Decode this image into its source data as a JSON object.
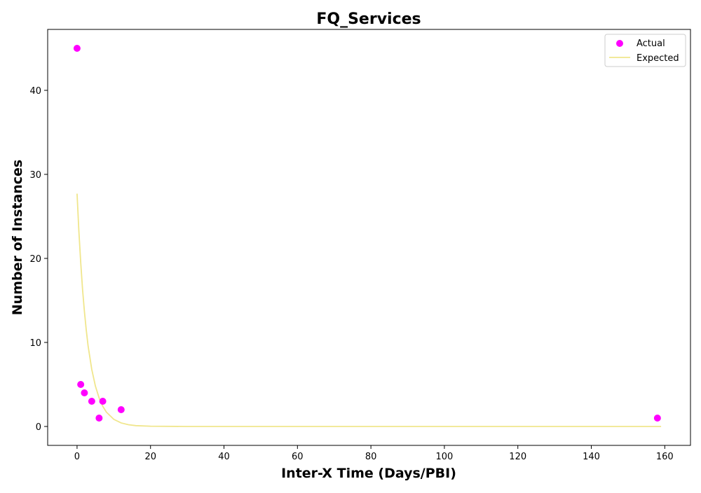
{
  "chart_data": {
    "type": "scatter",
    "title": "FQ_Services",
    "xlabel": "Inter-X Time (Days/PBI)",
    "ylabel": "Number of Instances",
    "xlim": [
      -8,
      167
    ],
    "ylim": [
      -2.25,
      47.25
    ],
    "x_ticks": [
      0,
      20,
      40,
      60,
      80,
      100,
      120,
      140,
      160
    ],
    "y_ticks": [
      0,
      10,
      20,
      30,
      40
    ],
    "grid": false,
    "legend_position": "top-right",
    "series": [
      {
        "name": "Actual",
        "kind": "scatter",
        "color": "#ff00ff",
        "points": [
          {
            "x": 0,
            "y": 45
          },
          {
            "x": 1,
            "y": 5
          },
          {
            "x": 2,
            "y": 4
          },
          {
            "x": 4,
            "y": 3
          },
          {
            "x": 6,
            "y": 1
          },
          {
            "x": 7,
            "y": 3
          },
          {
            "x": 12,
            "y": 2
          },
          {
            "x": 158,
            "y": 1
          }
        ]
      },
      {
        "name": "Expected",
        "kind": "line",
        "color": "#f0e68c",
        "points": [
          {
            "x": 0,
            "y": 27.7
          },
          {
            "x": 0.5,
            "y": 23.2
          },
          {
            "x": 1,
            "y": 19.5
          },
          {
            "x": 1.5,
            "y": 16.3
          },
          {
            "x": 2,
            "y": 13.7
          },
          {
            "x": 2.5,
            "y": 11.5
          },
          {
            "x": 3,
            "y": 9.6
          },
          {
            "x": 4,
            "y": 6.8
          },
          {
            "x": 5,
            "y": 4.8
          },
          {
            "x": 6,
            "y": 3.4
          },
          {
            "x": 7,
            "y": 2.4
          },
          {
            "x": 8,
            "y": 1.7
          },
          {
            "x": 10,
            "y": 0.85
          },
          {
            "x": 12,
            "y": 0.42
          },
          {
            "x": 14,
            "y": 0.21
          },
          {
            "x": 16,
            "y": 0.1
          },
          {
            "x": 20,
            "y": 0.03
          },
          {
            "x": 30,
            "y": 0.0
          },
          {
            "x": 60,
            "y": 0.0
          },
          {
            "x": 100,
            "y": 0.0
          },
          {
            "x": 140,
            "y": 0.0
          },
          {
            "x": 159,
            "y": 0.0
          }
        ]
      }
    ]
  }
}
